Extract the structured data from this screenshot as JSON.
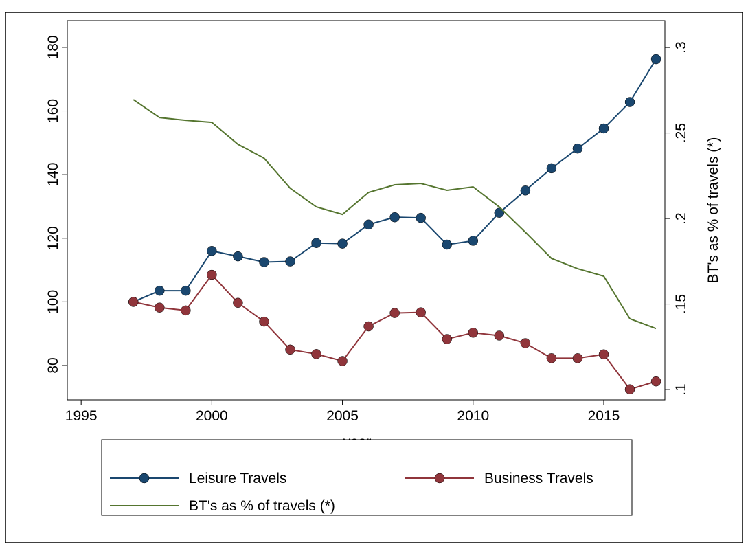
{
  "chart_data": {
    "type": "line",
    "x": [
      1997,
      1998,
      1999,
      2000,
      2001,
      2002,
      2003,
      2004,
      2005,
      2006,
      2007,
      2008,
      2009,
      2010,
      2011,
      2012,
      2013,
      2014,
      2015,
      2016,
      2017
    ],
    "x_label": "year",
    "y2_label": "BT's as % of travels (*)",
    "series": [
      {
        "name": "Leisure Travels",
        "color": "#1a476f",
        "markers": true,
        "values": [
          100,
          103.5,
          103.5,
          116,
          114.3,
          112.5,
          112.7,
          118.5,
          118.3,
          124.3,
          126.6,
          126.4,
          118,
          119.2,
          128,
          135,
          142,
          148.2,
          154.5,
          162.8,
          176.3
        ]
      },
      {
        "name": "Business Travels",
        "color": "#90353b",
        "markers": true,
        "values": [
          100,
          98.2,
          97.3,
          108.5,
          99.7,
          93.8,
          85,
          83.6,
          81.4,
          92.3,
          96.5,
          96.7,
          88.3,
          90.3,
          89.4,
          87,
          82.3,
          82.3,
          83.5,
          72.5,
          75
        ]
      },
      {
        "name": "BT's as % of travels (*)",
        "color": "#55752f",
        "markers": false,
        "axis": "y2",
        "values": [
          0.2695,
          0.259,
          0.2574,
          0.2562,
          0.2434,
          0.2353,
          0.2177,
          0.2068,
          0.2024,
          0.2153,
          0.2197,
          0.2205,
          0.2165,
          0.2185,
          0.2068,
          0.192,
          0.1767,
          0.1707,
          0.1663,
          0.1414,
          0.1357
        ]
      }
    ],
    "xlim": [
      1994.47,
      2017.34
    ],
    "xticks": [
      1995,
      2000,
      2005,
      2010,
      2015
    ],
    "ylim": [
      69.2,
      188.4
    ],
    "yticks": [
      80,
      100,
      120,
      140,
      160,
      180
    ],
    "y2lim": [
      0.094,
      0.3157
    ],
    "y2ticks": [
      {
        "value": 0.1,
        "label": ".1"
      },
      {
        "value": 0.15,
        "label": ".15"
      },
      {
        "value": 0.2,
        "label": ".2"
      },
      {
        "value": 0.25,
        "label": ".25"
      },
      {
        "value": 0.3,
        "label": ".3"
      }
    ],
    "legend": "bottom"
  }
}
